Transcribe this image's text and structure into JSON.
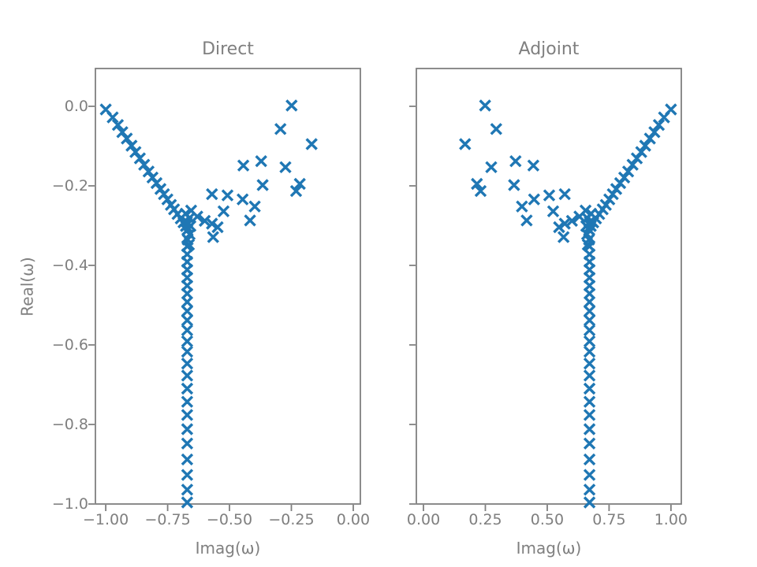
{
  "figure": {
    "background": "#ffffff",
    "marker_color": "#1f77b4",
    "axis_color": "#7f7f7f",
    "text_color": "#7f7f7f",
    "marker_half_size": 6.5,
    "marker_stroke_width": 3.4,
    "spine_width": 1.8,
    "tick_length": 8,
    "tick_width": 1.8
  },
  "chart_data": [
    {
      "type": "scatter",
      "title": "Direct",
      "xlabel": "Imag(ω)",
      "ylabel": "Real(ω)",
      "marker": "x",
      "grid": false,
      "legend": null,
      "xlim": [
        -1.045,
        0.032
      ],
      "ylim": [
        -1.002,
        0.097
      ],
      "xticks": [
        -1.0,
        -0.75,
        -0.5,
        -0.25,
        0.0
      ],
      "xtick_labels": [
        "−1.00",
        "−0.75",
        "−0.50",
        "−0.25",
        "0.00"
      ],
      "yticks": [
        0.0,
        -0.2,
        -0.4,
        -0.6,
        -0.8,
        -1.0
      ],
      "ytick_labels": [
        "0.0",
        "−0.2",
        "−0.4",
        "−0.6",
        "−0.8",
        "−1.0"
      ],
      "points": [
        [
          -1.0,
          -0.008
        ],
        [
          -0.972,
          -0.028
        ],
        [
          -0.951,
          -0.047
        ],
        [
          -0.933,
          -0.065
        ],
        [
          -0.915,
          -0.081
        ],
        [
          -0.896,
          -0.099
        ],
        [
          -0.88,
          -0.115
        ],
        [
          -0.862,
          -0.131
        ],
        [
          -0.845,
          -0.147
        ],
        [
          -0.827,
          -0.164
        ],
        [
          -0.811,
          -0.179
        ],
        [
          -0.795,
          -0.193
        ],
        [
          -0.779,
          -0.208
        ],
        [
          -0.765,
          -0.221
        ],
        [
          -0.751,
          -0.234
        ],
        [
          -0.737,
          -0.248
        ],
        [
          -0.724,
          -0.259
        ],
        [
          -0.71,
          -0.271
        ],
        [
          -0.697,
          -0.282
        ],
        [
          -0.686,
          -0.292
        ],
        [
          -0.676,
          -0.301
        ],
        [
          -0.655,
          -0.262
        ],
        [
          -0.677,
          -0.27
        ],
        [
          -0.662,
          -0.281
        ],
        [
          -0.672,
          -0.291
        ],
        [
          -0.658,
          -0.301
        ],
        [
          -0.67,
          -0.311
        ],
        [
          -0.661,
          -0.322
        ],
        [
          -0.669,
          -0.335
        ],
        [
          -0.664,
          -0.348
        ],
        [
          -0.671,
          -0.352
        ],
        [
          -0.671,
          -0.372
        ],
        [
          -0.671,
          -0.391
        ],
        [
          -0.671,
          -0.411
        ],
        [
          -0.671,
          -0.431
        ],
        [
          -0.671,
          -0.451
        ],
        [
          -0.671,
          -0.471
        ],
        [
          -0.671,
          -0.492
        ],
        [
          -0.671,
          -0.515
        ],
        [
          -0.671,
          -0.538
        ],
        [
          -0.671,
          -0.563
        ],
        [
          -0.671,
          -0.591
        ],
        [
          -0.671,
          -0.617
        ],
        [
          -0.671,
          -0.647
        ],
        [
          -0.671,
          -0.677
        ],
        [
          -0.671,
          -0.71
        ],
        [
          -0.671,
          -0.743
        ],
        [
          -0.671,
          -0.776
        ],
        [
          -0.671,
          -0.812
        ],
        [
          -0.671,
          -0.848
        ],
        [
          -0.671,
          -0.888
        ],
        [
          -0.671,
          -0.927
        ],
        [
          -0.671,
          -0.964
        ],
        [
          -0.671,
          -0.996
        ],
        [
          -0.249,
          0.002
        ],
        [
          -0.294,
          -0.057
        ],
        [
          -0.168,
          -0.095
        ],
        [
          -0.372,
          -0.138
        ],
        [
          -0.444,
          -0.149
        ],
        [
          -0.274,
          -0.153
        ],
        [
          -0.366,
          -0.198
        ],
        [
          -0.216,
          -0.195
        ],
        [
          -0.231,
          -0.213
        ],
        [
          -0.571,
          -0.221
        ],
        [
          -0.508,
          -0.224
        ],
        [
          -0.447,
          -0.234
        ],
        [
          -0.398,
          -0.252
        ],
        [
          -0.524,
          -0.264
        ],
        [
          -0.417,
          -0.287
        ],
        [
          -0.63,
          -0.277
        ],
        [
          -0.6,
          -0.288
        ],
        [
          -0.571,
          -0.295
        ],
        [
          -0.548,
          -0.304
        ],
        [
          -0.566,
          -0.329
        ]
      ]
    },
    {
      "type": "scatter",
      "title": "Adjoint",
      "xlabel": "Imag(ω)",
      "ylabel": "",
      "marker": "x",
      "grid": false,
      "legend": null,
      "xlim": [
        -0.032,
        1.045
      ],
      "ylim": [
        -1.002,
        0.097
      ],
      "xticks": [
        0.0,
        0.25,
        0.5,
        0.75,
        1.0
      ],
      "xtick_labels": [
        "0.00",
        "0.25",
        "0.50",
        "0.75",
        "1.00"
      ],
      "yticks": [
        0.0,
        -0.2,
        -0.4,
        -0.6,
        -0.8,
        -1.0
      ],
      "ytick_labels": [],
      "points": [
        [
          1.0,
          -0.008
        ],
        [
          0.972,
          -0.028
        ],
        [
          0.951,
          -0.047
        ],
        [
          0.933,
          -0.065
        ],
        [
          0.915,
          -0.081
        ],
        [
          0.896,
          -0.099
        ],
        [
          0.88,
          -0.115
        ],
        [
          0.862,
          -0.131
        ],
        [
          0.845,
          -0.147
        ],
        [
          0.827,
          -0.164
        ],
        [
          0.811,
          -0.179
        ],
        [
          0.795,
          -0.193
        ],
        [
          0.779,
          -0.208
        ],
        [
          0.765,
          -0.221
        ],
        [
          0.751,
          -0.234
        ],
        [
          0.737,
          -0.248
        ],
        [
          0.724,
          -0.259
        ],
        [
          0.71,
          -0.271
        ],
        [
          0.697,
          -0.282
        ],
        [
          0.686,
          -0.292
        ],
        [
          0.676,
          -0.301
        ],
        [
          0.655,
          -0.262
        ],
        [
          0.677,
          -0.27
        ],
        [
          0.662,
          -0.281
        ],
        [
          0.672,
          -0.291
        ],
        [
          0.658,
          -0.301
        ],
        [
          0.67,
          -0.311
        ],
        [
          0.661,
          -0.322
        ],
        [
          0.669,
          -0.335
        ],
        [
          0.664,
          -0.348
        ],
        [
          0.671,
          -0.352
        ],
        [
          0.671,
          -0.372
        ],
        [
          0.671,
          -0.391
        ],
        [
          0.671,
          -0.411
        ],
        [
          0.671,
          -0.431
        ],
        [
          0.671,
          -0.451
        ],
        [
          0.671,
          -0.471
        ],
        [
          0.671,
          -0.492
        ],
        [
          0.671,
          -0.515
        ],
        [
          0.671,
          -0.538
        ],
        [
          0.671,
          -0.563
        ],
        [
          0.671,
          -0.591
        ],
        [
          0.671,
          -0.617
        ],
        [
          0.671,
          -0.647
        ],
        [
          0.671,
          -0.677
        ],
        [
          0.671,
          -0.71
        ],
        [
          0.671,
          -0.743
        ],
        [
          0.671,
          -0.776
        ],
        [
          0.671,
          -0.812
        ],
        [
          0.671,
          -0.848
        ],
        [
          0.671,
          -0.888
        ],
        [
          0.671,
          -0.927
        ],
        [
          0.671,
          -0.964
        ],
        [
          0.671,
          -0.996
        ],
        [
          0.249,
          0.002
        ],
        [
          0.294,
          -0.057
        ],
        [
          0.168,
          -0.095
        ],
        [
          0.372,
          -0.138
        ],
        [
          0.444,
          -0.149
        ],
        [
          0.274,
          -0.153
        ],
        [
          0.366,
          -0.198
        ],
        [
          0.216,
          -0.195
        ],
        [
          0.231,
          -0.213
        ],
        [
          0.571,
          -0.221
        ],
        [
          0.508,
          -0.224
        ],
        [
          0.447,
          -0.234
        ],
        [
          0.398,
          -0.252
        ],
        [
          0.524,
          -0.264
        ],
        [
          0.417,
          -0.287
        ],
        [
          0.63,
          -0.277
        ],
        [
          0.6,
          -0.288
        ],
        [
          0.571,
          -0.295
        ],
        [
          0.548,
          -0.304
        ],
        [
          0.566,
          -0.329
        ]
      ]
    }
  ]
}
